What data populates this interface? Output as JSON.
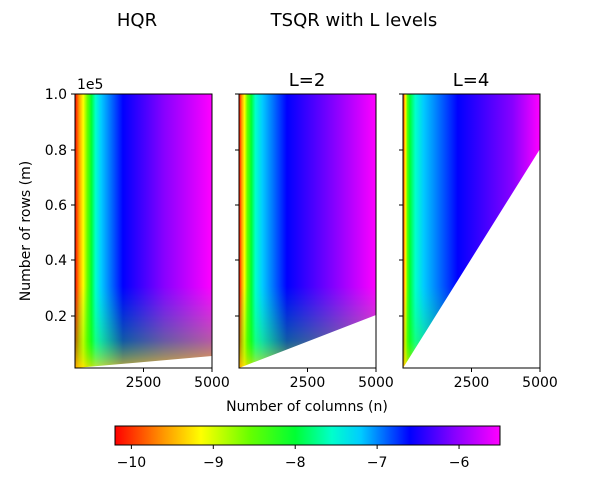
{
  "figure": {
    "title_left": "HQR",
    "title_right": "TSQR with L levels"
  },
  "chart_data": [
    {
      "type": "heatmap",
      "title": "",
      "xlabel": "",
      "ylabel": "Number of rows (m)",
      "y_offset_label": "1e5",
      "xlim": [
        1,
        5000
      ],
      "ylim": [
        0.01,
        1.0
      ],
      "x_ticks": [
        "2500",
        "5000"
      ],
      "y_ticks": [
        "0.2",
        "0.4",
        "0.6",
        "0.8",
        "1.0"
      ],
      "valid_region": "m >= n",
      "boundary": [
        [
          0,
          0.01
        ],
        [
          5000,
          0.05
        ]
      ],
      "colormap": "gist_rainbow",
      "value_range": [
        -10,
        -5.5
      ]
    },
    {
      "type": "heatmap",
      "title": "L=2",
      "xlabel": "Number of columns (n)",
      "ylabel": "",
      "xlim": [
        1,
        5000
      ],
      "ylim": [
        0.01,
        1.0
      ],
      "x_ticks": [
        "2500",
        "5000"
      ],
      "y_ticks": [],
      "valid_region": "m >= 4n",
      "boundary": [
        [
          0,
          0.01
        ],
        [
          5000,
          0.2
        ]
      ],
      "colormap": "gist_rainbow",
      "value_range": [
        -10,
        -5.5
      ]
    },
    {
      "type": "heatmap",
      "title": "L=4",
      "xlabel": "",
      "ylabel": "",
      "xlim": [
        1,
        5000
      ],
      "ylim": [
        0.01,
        1.0
      ],
      "x_ticks": [
        "2500",
        "5000"
      ],
      "y_ticks": [],
      "valid_region": "m >= 16n",
      "boundary": [
        [
          0,
          0.01
        ],
        [
          5000,
          0.8
        ]
      ],
      "colormap": "gist_rainbow",
      "value_range": [
        -10,
        -5.5
      ]
    }
  ],
  "colorbar": {
    "min": -10.2,
    "max": -5.5,
    "ticks": [
      "−10",
      "−9",
      "−8",
      "−7",
      "−6"
    ],
    "tick_values": [
      -10,
      -9,
      -8,
      -7,
      -6
    ],
    "stops": [
      {
        "value": -10.2,
        "color": "#ff0000"
      },
      {
        "value": -9.6,
        "color": "#ff9900"
      },
      {
        "value": -9.15,
        "color": "#ffff00"
      },
      {
        "value": -8.55,
        "color": "#66ff00"
      },
      {
        "value": -8.0,
        "color": "#00ff33"
      },
      {
        "value": -7.55,
        "color": "#00ffcc"
      },
      {
        "value": -7.2,
        "color": "#00ccff"
      },
      {
        "value": -6.6,
        "color": "#0000ff"
      },
      {
        "value": -6.05,
        "color": "#8800ff"
      },
      {
        "value": -5.5,
        "color": "#ff00ff"
      }
    ]
  }
}
